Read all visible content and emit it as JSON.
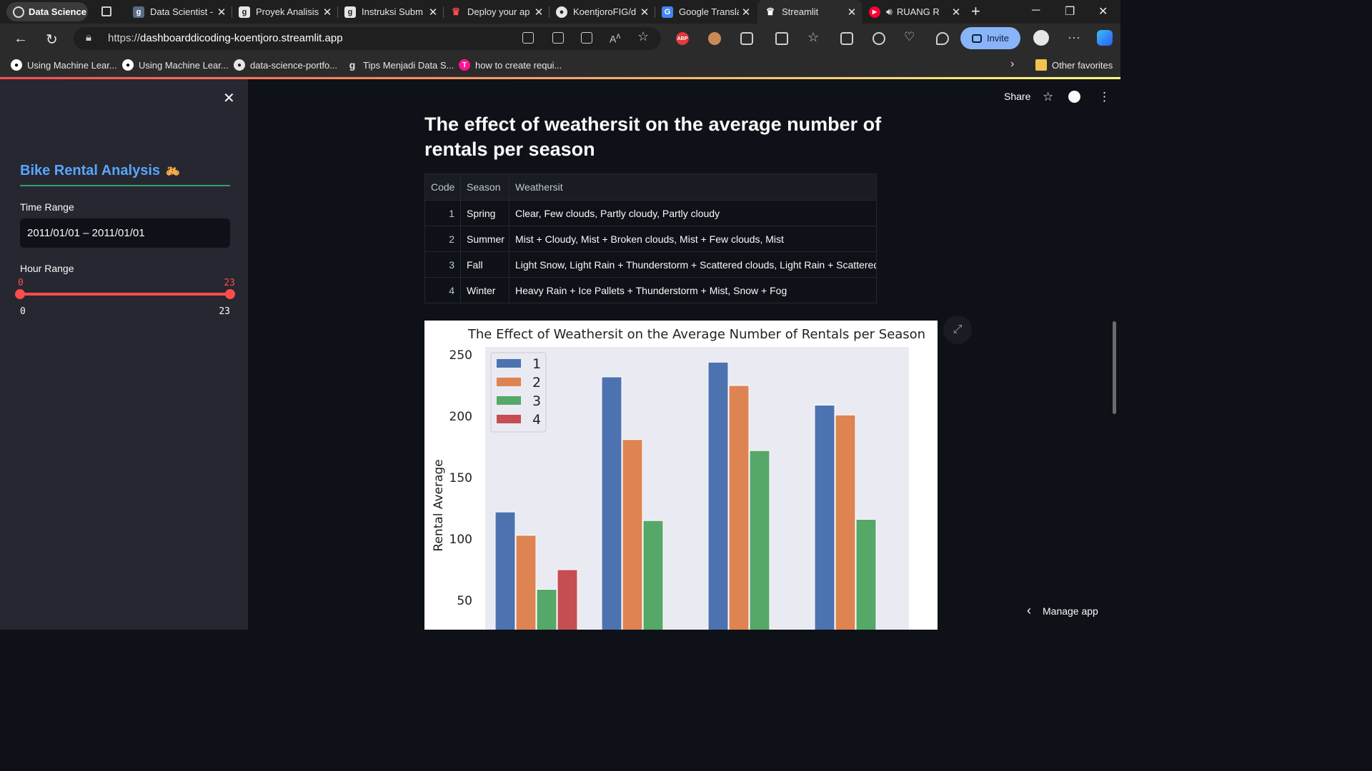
{
  "browser": {
    "profile": "Data Science",
    "tabs": [
      {
        "title": "Data Scientist -",
        "icon": "dicoding-icon",
        "active": false
      },
      {
        "title": "Proyek Analisis",
        "icon": "dicoding-icon",
        "active": false
      },
      {
        "title": "Instruksi Subm",
        "icon": "dicoding-icon",
        "active": false
      },
      {
        "title": "Deploy your ap",
        "icon": "streamlit-icon",
        "active": false
      },
      {
        "title": "KoentjoroFIG/d",
        "icon": "github-icon",
        "active": false
      },
      {
        "title": "Google Transla",
        "icon": "google-translate-icon",
        "active": false
      },
      {
        "title": "Streamlit",
        "icon": "streamlit-icon",
        "active": true
      },
      {
        "title": "RUANG R",
        "icon": "youtube-icon",
        "active": false
      }
    ],
    "url_prefix": "https://",
    "url_host": "dashboarddicoding-koentjoro.streamlit.app",
    "invite_label": "Invite",
    "bookmarks": [
      {
        "label": "Using Machine Lear...",
        "icon": "medium-icon"
      },
      {
        "label": "Using Machine Lear...",
        "icon": "medium-icon"
      },
      {
        "label": "data-science-portfo...",
        "icon": "github-icon"
      },
      {
        "label": "Tips Menjadi Data S...",
        "icon": "dicoding-icon"
      },
      {
        "label": "how to create requi...",
        "icon": "t-icon"
      }
    ],
    "other_favorites": "Other favorites",
    "extension_abp": "ABP"
  },
  "sidebar": {
    "title": "Bike Rental Analysis",
    "time_range_label": "Time Range",
    "time_range_value": "2011/01/01 – 2011/01/01",
    "hour_range_label": "Hour Range",
    "hour_low": "0",
    "hour_high": "23",
    "hour_min": "0",
    "hour_max": "23"
  },
  "header": {
    "share_label": "Share"
  },
  "main": {
    "title": "The effect of weathersit on the average number of rentals per season",
    "table": {
      "columns": [
        "Code",
        "Season",
        "Weathersit"
      ],
      "rows": [
        [
          "1",
          "Spring",
          "Clear, Few clouds, Partly cloudy, Partly cloudy"
        ],
        [
          "2",
          "Summer",
          "Mist + Cloudy, Mist + Broken clouds, Mist + Few clouds, Mist"
        ],
        [
          "3",
          "Fall",
          "Light Snow, Light Rain + Thunderstorm + Scattered clouds, Light Rain + Scattered clou"
        ],
        [
          "4",
          "Winter",
          "Heavy Rain + Ice Pallets + Thunderstorm + Mist, Snow + Fog"
        ]
      ]
    },
    "manage_app": "Manage app"
  },
  "chart_data": {
    "type": "bar",
    "title": "The Effect of Weathersit on the Average Number of Rentals per Season",
    "ylabel": "Rental Average",
    "xlabel": "",
    "ylim": [
      0,
      260
    ],
    "yticks": [
      50,
      100,
      150,
      200,
      250
    ],
    "grid": false,
    "legend": "top-left",
    "series": [
      {
        "name": "1",
        "color": "#4c72b0",
        "values": [
          122,
          232,
          244,
          209
        ]
      },
      {
        "name": "2",
        "color": "#dd8452",
        "values": [
          103,
          181,
          225,
          201
        ]
      },
      {
        "name": "3",
        "color": "#55a868",
        "values": [
          59,
          115,
          172,
          116
        ]
      },
      {
        "name": "4",
        "color": "#c44e52",
        "values": [
          75,
          null,
          null,
          null
        ]
      }
    ]
  }
}
